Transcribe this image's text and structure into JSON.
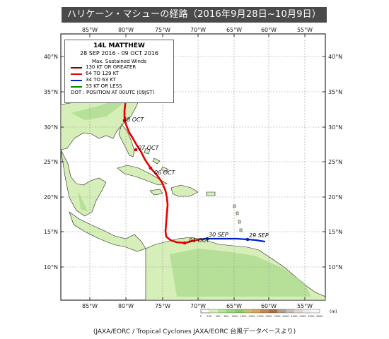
{
  "title": "ハリケーン・マシューの経路（2016年9月28日~10月9日）",
  "legend": {
    "storm_name": "14L  MATTHEW",
    "period": "28 SEP 2016 - 09 OCT 2016",
    "heading": "Max. Sustained Winds",
    "categories": [
      {
        "label": "130 KT OR GREATER",
        "color": "#8b0000"
      },
      {
        "label": "64 TO 129 KT",
        "color": "#e60000"
      },
      {
        "label": "34 TO 63 KT",
        "color": "#0022cc"
      },
      {
        "label": "33 KT OR LESS",
        "color": "#008800"
      }
    ],
    "dot_note": "DOT : POSITION AT 00UTC (09JST)"
  },
  "axes": {
    "lon_labels": [
      "85°W",
      "80°W",
      "75°W",
      "70°W",
      "65°W",
      "60°W",
      "55°W"
    ],
    "lat_labels_left": [
      "40°N",
      "35°N",
      "30°N",
      "25°N",
      "20°N",
      "15°N",
      "10°N"
    ],
    "lat_labels_right": [
      "40°N",
      "35°N",
      "30°N",
      "25°N",
      "20°N",
      "15°N",
      "10°N"
    ]
  },
  "track": {
    "daily_positions": [
      {
        "label": "29 SEP",
        "lon": -63.5,
        "lat": 14.0
      },
      {
        "label": "30 SEP",
        "lon": -68.8,
        "lat": 14.2
      },
      {
        "label": "01 OCT",
        "lon": -71.8,
        "lat": 13.4
      },
      {
        "label": "06 OCT",
        "lon": -77.5,
        "lat": 24.0
      },
      {
        "label": "07 OCT",
        "lon": -79.3,
        "lat": 26.8
      },
      {
        "label": "08 OCT",
        "lon": -80.4,
        "lat": 31.0
      }
    ]
  },
  "colorbar": {
    "unit": "(m)",
    "labels": [
      "0",
      "100",
      "200",
      "500",
      "1000",
      "1500",
      "2000",
      "2500",
      "3000",
      "3500",
      "4000",
      "4500",
      "5000",
      "5500",
      "6000"
    ]
  },
  "source": "(JAXA/EORC / Tropical Cyclones JAXA/EORC 台風データベースより)"
}
